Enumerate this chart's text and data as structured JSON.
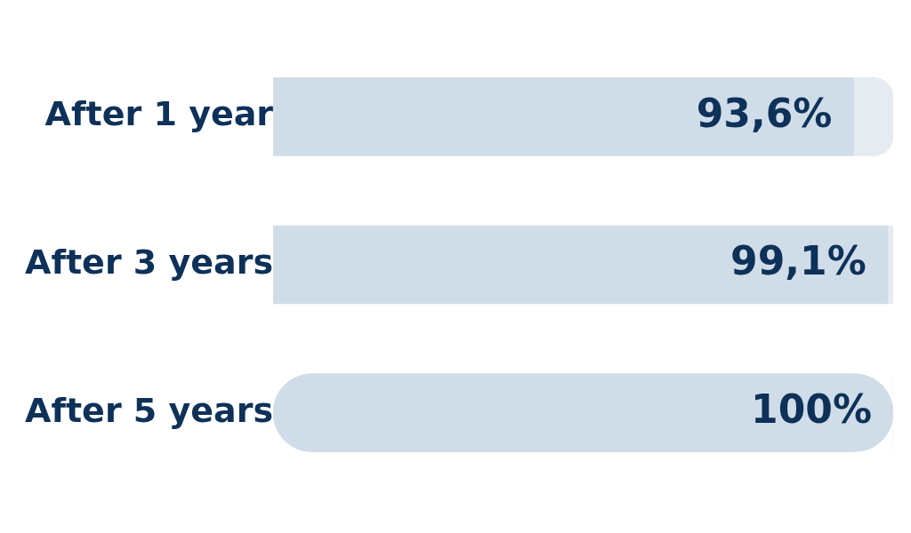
{
  "chart_data": {
    "type": "bar",
    "stacked": true,
    "orientation": "horizontal",
    "categories": [
      "After 1 year",
      "After 3 years",
      "After 5 years"
    ],
    "xlim": [
      0,
      100
    ],
    "tick_labels": "y",
    "grid": false,
    "legend": false,
    "series": [
      {
        "color": "#d0dde9",
        "values": [
          93.6,
          99.1,
          100
        ],
        "value_labels": [
          "93,6%",
          "99,1%",
          "100%"
        ]
      },
      {
        "color": "#e6ebf2",
        "values": [
          6.4,
          0.9,
          0
        ]
      }
    ]
  }
}
